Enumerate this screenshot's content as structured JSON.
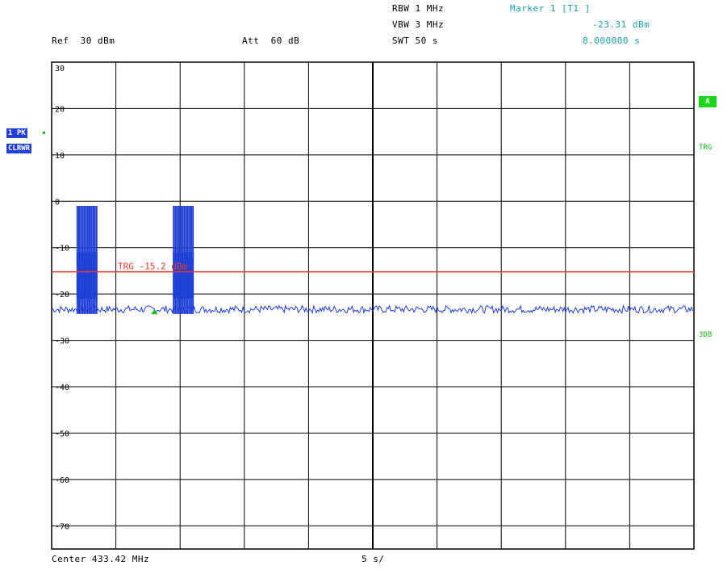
{
  "header": {
    "rbw": "RBW 1 MHz",
    "vbw": "VBW 3 MHz",
    "swt": "SWT 50 s",
    "marker_title": "Marker 1 [T1 ]",
    "marker_level": "-23.31 dBm",
    "marker_time": "8.000000 s",
    "ref": "Ref  30 dBm",
    "att": "Att  60 dB"
  },
  "footer": {
    "center": "Center 433.42 MHz",
    "span": "5 s/"
  },
  "side_labels": {
    "trace_mode": "1 PK",
    "trace_clear": "CLRWR",
    "a_box": "A",
    "trg": "TRG",
    "threedb": "3DB"
  },
  "colors": {
    "trace": "#1f3fd6",
    "trigger_line": "#e33a2a",
    "grid": "#000000",
    "marker": "#10c010",
    "header_cyan": "#1a9ca8"
  },
  "chart_data": {
    "type": "line",
    "title": "",
    "xlabel": "Center 433.42 MHz",
    "ylabel": "dBm",
    "x_unit": "s",
    "xlim": [
      0,
      50
    ],
    "ylim": [
      -75,
      30
    ],
    "ytick_labels": [
      "30",
      "20",
      "10",
      "0",
      "-10",
      "-20",
      "-30",
      "-40",
      "-50",
      "-60",
      "-70"
    ],
    "yticks": [
      30,
      20,
      10,
      0,
      -10,
      -20,
      -30,
      -40,
      -50,
      -60,
      -70
    ],
    "grid": true,
    "trigger": {
      "label": "TRG -15.2 dBm",
      "level": -15.2
    },
    "marker": {
      "name": "Marker 1 [T1 ]",
      "x": 8.0,
      "y": -23.31
    },
    "noise_floor": -23.3,
    "bursts": [
      {
        "start": 2.0,
        "end": 3.5,
        "peak": -1.0
      },
      {
        "start": 9.5,
        "end": 11.0,
        "peak": -1.0
      }
    ],
    "series": [
      {
        "values_description_none": null
      }
    ]
  }
}
